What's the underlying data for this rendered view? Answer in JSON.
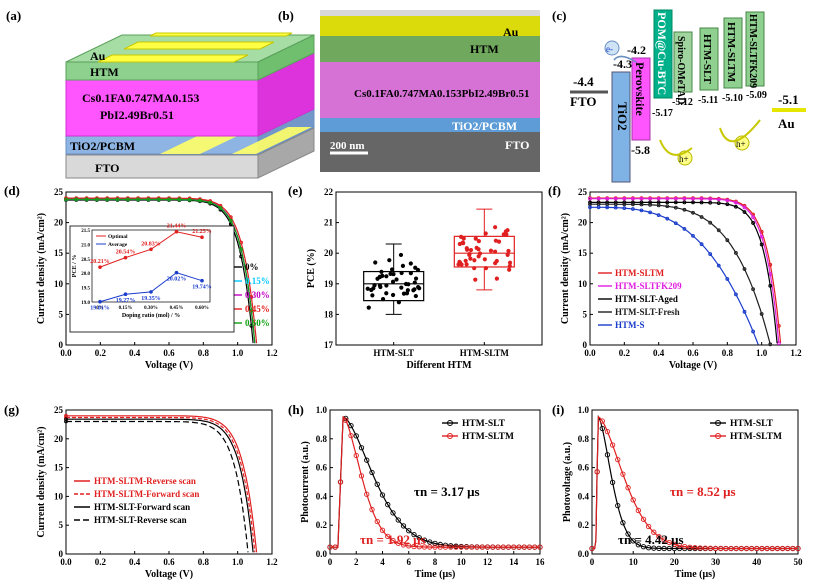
{
  "panels": {
    "a": {
      "label": "(a)",
      "layers": [
        "Au",
        "HTM",
        "Cs0.1FA0.747MA0.153",
        "PbI2.49Br0.51",
        "TiO2/PCBM",
        "FTO"
      ]
    },
    "b": {
      "label": "(b)",
      "layers": [
        "Au",
        "HTM",
        "Cs0.1FA0.747MA0.153PbI2.49Br0.51",
        "TiO2/PCBM",
        "FTO"
      ],
      "scale_bar": "200 nm"
    },
    "c": {
      "label": "(c)",
      "fto": {
        "name": "FTO",
        "value": "-4.4"
      },
      "tio2": {
        "name": "TiO2",
        "value": "-4.3"
      },
      "perovskite": {
        "name": "Perovskite",
        "top": "-4.2",
        "bottom": "-5.8"
      },
      "pom": {
        "name": "POM@Cu-BTC",
        "value": "-5.17"
      },
      "spiro": {
        "name": "Spiro-OMeTAD",
        "value": "-5.12"
      },
      "htm_slt": {
        "name": "HTM-SLT",
        "value": "-5.11"
      },
      "htm_sltm": {
        "name": "HTM-SLTM",
        "value": "-5.10"
      },
      "htm_sltfk": {
        "name": "HTM-SLTFK209",
        "value": "-5.09"
      },
      "au": {
        "name": "Au",
        "value": "-5.1"
      },
      "electron": "e-",
      "hole": "h+"
    }
  },
  "chart_data": [
    {
      "id": "d",
      "label": "(d)",
      "type": "line",
      "xlabel": "Voltage (V)",
      "ylabel": "Current density (mA/cm²)",
      "xlim": [
        0.0,
        1.2
      ],
      "ylim": [
        0,
        25
      ],
      "xticks": [
        "0.0",
        "0.2",
        "0.4",
        "0.6",
        "0.8",
        "1.0",
        "1.2"
      ],
      "yticks": [
        "0",
        "5",
        "10",
        "15",
        "20",
        "25"
      ],
      "series": [
        {
          "name": "0%",
          "color": "#000000",
          "jsc": 23.7,
          "voc": 1.09
        },
        {
          "name": "0.15%",
          "color": "#00c8ff",
          "jsc": 23.8,
          "voc": 1.1
        },
        {
          "name": "0.30%",
          "color": "#c000c0",
          "jsc": 23.9,
          "voc": 1.1
        },
        {
          "name": "0.45%",
          "color": "#e02020",
          "jsc": 24.0,
          "voc": 1.11
        },
        {
          "name": "0.60%",
          "color": "#10a010",
          "jsc": 23.8,
          "voc": 1.1
        }
      ],
      "inset": {
        "xlabel": "Doping ratio (mol) / %",
        "ylabel": "PCE / %",
        "categories": [
          "0%",
          "0.15%",
          "0.30%",
          "0.45%",
          "0.60%"
        ],
        "yticks": [
          "19.0",
          "19.5",
          "20.0",
          "20.5",
          "21.0",
          "21.5"
        ],
        "series": [
          {
            "name": "Optimal",
            "color": "#e02020",
            "values": [
              20.21,
              20.54,
              20.83,
              21.44,
              21.25
            ],
            "labels": [
              "20.21%",
              "20.54%",
              "20.83%",
              "21.44%",
              "21.25%"
            ]
          },
          {
            "name": "Average",
            "color": "#1a3ccc",
            "values": [
              19.01,
              19.27,
              19.35,
              20.02,
              19.74
            ],
            "labels": [
              "19.01%",
              "19.27%",
              "19.35%",
              "20.02%",
              "19.74%"
            ]
          }
        ]
      }
    },
    {
      "id": "e",
      "label": "(e)",
      "type": "box",
      "xlabel": "Different HTM",
      "ylabel": "PCE (%)",
      "ylim": [
        17,
        22
      ],
      "yticks": [
        "17",
        "18",
        "19",
        "20",
        "21",
        "22"
      ],
      "categories": [
        "HTM-SLT",
        "HTM-SLTM"
      ],
      "boxes": [
        {
          "name": "HTM-SLT",
          "color": "#000000",
          "min": 18.0,
          "q1": 18.45,
          "median": 19.0,
          "q3": 19.4,
          "max": 20.3,
          "mean": 19.0
        },
        {
          "name": "HTM-SLTM",
          "color": "#e02020",
          "min": 18.8,
          "q1": 19.55,
          "median": 20.0,
          "q3": 20.55,
          "max": 21.44,
          "mean": 20.0
        }
      ]
    },
    {
      "id": "f",
      "label": "(f)",
      "type": "line",
      "xlabel": "Voltage (V)",
      "ylabel": "Current density (mA/cm²)",
      "xlim": [
        0.0,
        1.2
      ],
      "ylim": [
        0,
        25
      ],
      "xticks": [
        "0.0",
        "0.2",
        "0.4",
        "0.6",
        "0.8",
        "1.0",
        "1.2"
      ],
      "yticks": [
        "0",
        "5",
        "10",
        "15",
        "20",
        "25"
      ],
      "series": [
        {
          "name": "HTM-SLTM",
          "color": "#e02020",
          "jsc": 24.0,
          "voc": 1.11
        },
        {
          "name": "HTM-SLTFK209",
          "color": "#e020e0",
          "jsc": 23.9,
          "voc": 1.1
        },
        {
          "name": "HTM-SLT-Aged",
          "color": "#000000",
          "jsc": 23.3,
          "voc": 1.09
        },
        {
          "name": "HTM-SLT-Fresh",
          "color": "#202020",
          "jsc": 23.0,
          "voc": 1.05
        },
        {
          "name": "HTM-S",
          "color": "#1a3ccc",
          "jsc": 22.5,
          "voc": 0.98
        }
      ]
    },
    {
      "id": "g",
      "label": "(g)",
      "type": "line",
      "xlabel": "Voltage (V)",
      "ylabel": "Current density (mA/cm²)",
      "xlim": [
        0.0,
        1.2
      ],
      "ylim": [
        0,
        25
      ],
      "xticks": [
        "0.0",
        "0.2",
        "0.4",
        "0.6",
        "0.8",
        "1.0",
        "1.2"
      ],
      "yticks": [
        "0",
        "5",
        "10",
        "15",
        "20",
        "25"
      ],
      "series": [
        {
          "name": "HTM-SLTM-Reverse scan",
          "color": "#e02020",
          "jsc": 24.0,
          "voc": 1.11
        },
        {
          "name": "HTM-SLTM-Forward scan",
          "color": "#e02020",
          "jsc": 23.7,
          "voc": 1.1
        },
        {
          "name": "HTM-SLT-Forward scan",
          "color": "#000000",
          "jsc": 23.4,
          "voc": 1.09
        },
        {
          "name": "HTM-SLT-Reverse scan",
          "color": "#000000",
          "jsc": 23.0,
          "voc": 1.06
        }
      ]
    },
    {
      "id": "h",
      "label": "(h)",
      "type": "line",
      "xlabel": "Time (μs)",
      "ylabel": "Photocurrent (a.u.)",
      "xlim": [
        0,
        16
      ],
      "ylim": [
        0,
        1.05
      ],
      "xticks": [
        "0",
        "2",
        "4",
        "6",
        "8",
        "10",
        "12",
        "14",
        "16"
      ],
      "yticks": [
        "0.0",
        "0.2",
        "0.4",
        "0.6",
        "0.8",
        "1.0"
      ],
      "series": [
        {
          "name": "HTM-SLT",
          "color": "#000000",
          "tau": 3.17,
          "peak_t": 1.0
        },
        {
          "name": "HTM-SLTM",
          "color": "#e02020",
          "tau": 1.92,
          "peak_t": 1.0
        }
      ],
      "annotations": [
        "τn = 3.17 μs",
        "τn = 1.92 μs"
      ]
    },
    {
      "id": "i",
      "label": "(i)",
      "type": "line",
      "xlabel": "Time (μs)",
      "ylabel": "Photovoltage (a.u.)",
      "xlim": [
        0,
        50
      ],
      "ylim": [
        0,
        1.05
      ],
      "xticks": [
        "0",
        "10",
        "20",
        "30",
        "40",
        "50"
      ],
      "yticks": [
        "0.0",
        "0.2",
        "0.4",
        "0.6",
        "0.8",
        "1.0"
      ],
      "series": [
        {
          "name": "HTM-SLT",
          "color": "#000000",
          "tau": 4.42,
          "peak_t": 1.5
        },
        {
          "name": "HTM-SLTM",
          "color": "#e02020",
          "tau": 8.52,
          "peak_t": 1.5
        }
      ],
      "annotations": [
        "τn = 8.52 μs",
        "τn = 4.42 μs"
      ]
    }
  ]
}
